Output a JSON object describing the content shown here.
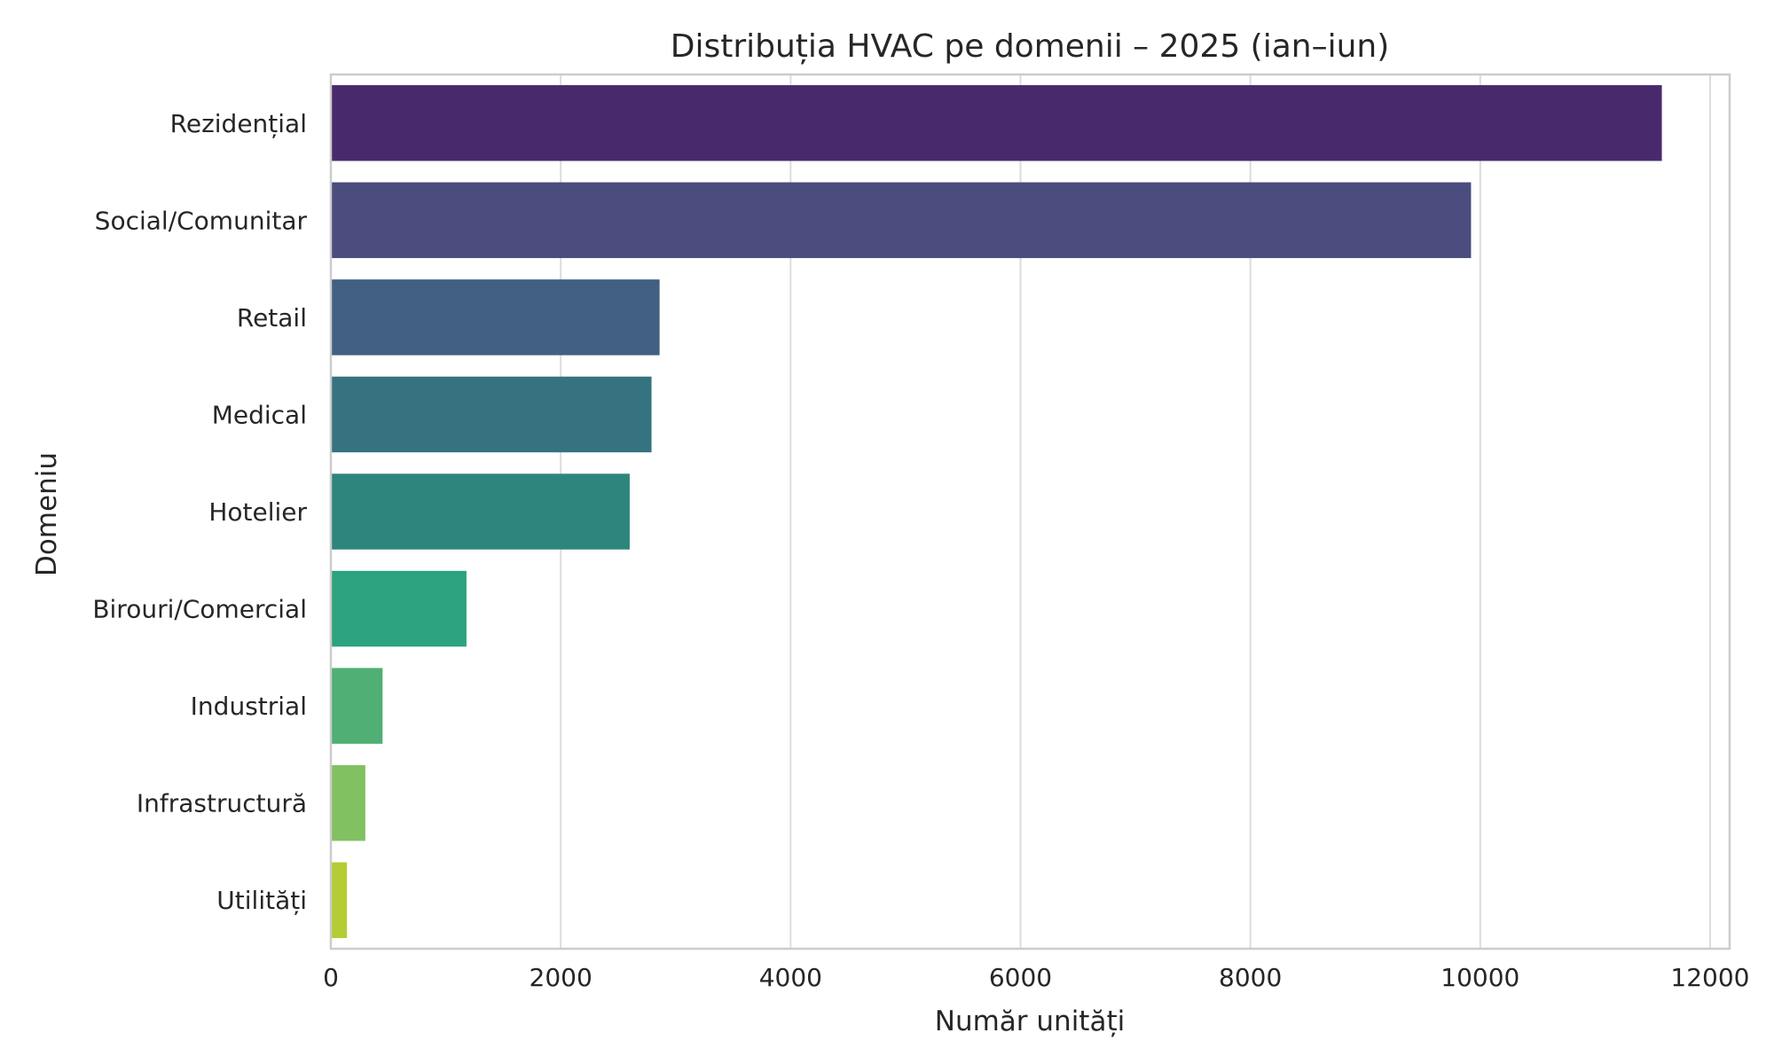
{
  "chart_data": {
    "type": "bar",
    "orientation": "horizontal",
    "title": "Distribuția HVAC pe domenii – 2025 (ian–iun)",
    "xlabel": "Număr unități",
    "ylabel": "Domeniu",
    "xlim": [
      0,
      12170
    ],
    "xticks": [
      0,
      2000,
      4000,
      6000,
      8000,
      10000,
      12000
    ],
    "grid": true,
    "categories": [
      "Rezidențial",
      "Social/Comunitar",
      "Retail",
      "Medical",
      "Hotelier",
      "Birouri/Comercial",
      "Industrial",
      "Infrastructură",
      "Utilități"
    ],
    "values": [
      11580,
      9920,
      2860,
      2790,
      2600,
      1180,
      450,
      300,
      140
    ],
    "colors": [
      "#482a6c",
      "#4a4d7e",
      "#416082",
      "#357380",
      "#2e857d",
      "#2da27e",
      "#4faf74",
      "#81c161",
      "#b5cc34"
    ]
  }
}
